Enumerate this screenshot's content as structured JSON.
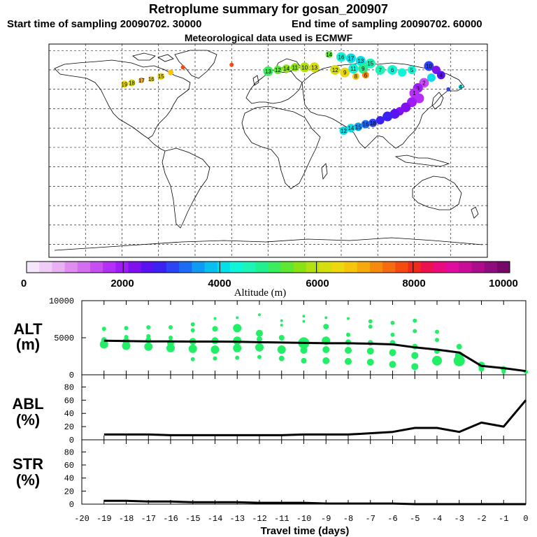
{
  "header": {
    "title": "Retroplume summary for gosan_200907",
    "start": "Start time of sampling 20090702. 30000",
    "end": "End time of sampling 20090702. 60000",
    "met": "Meteorological data used is ECMWF"
  },
  "colorbar": {
    "ticks": [
      "0",
      "2000",
      "4000",
      "6000",
      "8000",
      "10000"
    ],
    "label": "Altitude (m)",
    "colors": [
      "#f6e6fb",
      "#f0cdf7",
      "#e8b1f2",
      "#df8ef0",
      "#d46ef0",
      "#c64ff2",
      "#b430f6",
      "#a01cf8",
      "#8010f0",
      "#5a12f0",
      "#3b22f2",
      "#2c44f4",
      "#1d6cf6",
      "#109af4",
      "#08bff0",
      "#06dfe8",
      "#10f4d8",
      "#1cf4b8",
      "#22f090",
      "#3aec5e",
      "#5ee832",
      "#8ae214",
      "#b2e010",
      "#d6de10",
      "#ecd80c",
      "#f6c40c",
      "#f6a80c",
      "#f68a0c",
      "#f66a10",
      "#f44c10",
      "#f02a1c",
      "#ec1250",
      "#ea0c7c",
      "#e00ca0",
      "#c80c98",
      "#ac0c8c",
      "#900c7c",
      "#76086a"
    ]
  },
  "map_data": {
    "markers": [
      {
        "lon": -118,
        "lat": 49,
        "c": "#ecd80c",
        "r": 5,
        "label": "19"
      },
      {
        "lon": -112,
        "lat": 50,
        "c": "#d6de10",
        "r": 5,
        "label": "18"
      },
      {
        "lon": -104,
        "lat": 52,
        "c": "#f6a80c",
        "r": 4,
        "label": "17"
      },
      {
        "lon": -96,
        "lat": 53,
        "c": "#ecd80c",
        "r": 4,
        "label": "16"
      },
      {
        "lon": -88,
        "lat": 55,
        "c": "#ecd80c",
        "r": 5,
        "label": "15"
      },
      {
        "lon": -80,
        "lat": 58,
        "c": "#f6c40c",
        "r": 4,
        "label": ""
      },
      {
        "lon": -70,
        "lat": 62,
        "c": "#f44c10",
        "r": 3,
        "label": ""
      },
      {
        "lon": -30,
        "lat": 64,
        "c": "#f44c10",
        "r": 3,
        "label": ""
      },
      {
        "lon": 0,
        "lat": 59,
        "c": "#3aec5e",
        "r": 7,
        "label": "13"
      },
      {
        "lon": 8,
        "lat": 60,
        "c": "#5ee832",
        "r": 6,
        "label": "12"
      },
      {
        "lon": 15,
        "lat": 61,
        "c": "#8ae214",
        "r": 6,
        "label": "14"
      },
      {
        "lon": 22,
        "lat": 62,
        "c": "#8ae214",
        "r": 6,
        "label": "11"
      },
      {
        "lon": 30,
        "lat": 62,
        "c": "#b2e010",
        "r": 7,
        "label": "10"
      },
      {
        "lon": 38,
        "lat": 62,
        "c": "#d6de10",
        "r": 7,
        "label": "13"
      },
      {
        "lon": 50,
        "lat": 72,
        "c": "#5ee832",
        "r": 5,
        "label": "14"
      },
      {
        "lon": 60,
        "lat": 70,
        "c": "#10f4d8",
        "r": 7,
        "label": "16"
      },
      {
        "lon": 68,
        "lat": 69,
        "c": "#06dfe8",
        "r": 7,
        "label": "17"
      },
      {
        "lon": 76,
        "lat": 67,
        "c": "#06dfe8",
        "r": 7,
        "label": "13"
      },
      {
        "lon": 84,
        "lat": 65,
        "c": "#1cf4b8",
        "r": 7,
        "label": "15"
      },
      {
        "lon": 55,
        "lat": 60,
        "c": "#d6de10",
        "r": 7,
        "label": "12"
      },
      {
        "lon": 63,
        "lat": 58,
        "c": "#ecd80c",
        "r": 7,
        "label": "9"
      },
      {
        "lon": 70,
        "lat": 61,
        "c": "#10f4d8",
        "r": 7,
        "label": "11"
      },
      {
        "lon": 78,
        "lat": 61,
        "c": "#22f090",
        "r": 7,
        "label": "9"
      },
      {
        "lon": 72,
        "lat": 55,
        "c": "#f6c40c",
        "r": 5,
        "label": "8"
      },
      {
        "lon": 80,
        "lat": 56,
        "c": "#f68a0c",
        "r": 5,
        "label": "6"
      },
      {
        "lon": 92,
        "lat": 60,
        "c": "#1cf4b8",
        "r": 7,
        "label": "7"
      },
      {
        "lon": 102,
        "lat": 60,
        "c": "#10f4d8",
        "r": 7,
        "label": "6"
      },
      {
        "lon": 110,
        "lat": 58,
        "c": "#10f4d8",
        "r": 6,
        "label": ""
      },
      {
        "lon": 118,
        "lat": 60,
        "c": "#10f4d8",
        "r": 6,
        "label": "5"
      },
      {
        "lon": 132,
        "lat": 63,
        "c": "#2c44f4",
        "r": 7,
        "label": "10"
      },
      {
        "lon": 138,
        "lat": 60,
        "c": "#8010f0",
        "r": 6,
        "label": ""
      },
      {
        "lon": 142,
        "lat": 56,
        "c": "#5a12f0",
        "r": 6,
        "label": "4"
      },
      {
        "lon": 134,
        "lat": 54,
        "c": "#06dfe8",
        "r": 6,
        "label": ""
      },
      {
        "lon": 128,
        "lat": 50,
        "c": "#c64ff2",
        "r": 7,
        "label": "2"
      },
      {
        "lon": 123,
        "lat": 46,
        "c": "#a01cf8",
        "r": 7,
        "label": "3"
      },
      {
        "lon": 120,
        "lat": 42,
        "c": "#b430f6",
        "r": 7,
        "label": "1"
      },
      {
        "lon": 124,
        "lat": 38,
        "c": "#b430f6",
        "r": 7,
        "label": ""
      },
      {
        "lon": 118,
        "lat": 35,
        "c": "#a01cf8",
        "r": 7,
        "label": ""
      },
      {
        "lon": 113,
        "lat": 31,
        "c": "#8010f0",
        "r": 7,
        "label": ""
      },
      {
        "lon": 108,
        "lat": 28,
        "c": "#8010f0",
        "r": 6,
        "label": ""
      },
      {
        "lon": 104,
        "lat": 26,
        "c": "#5a12f0",
        "r": 7,
        "label": ""
      },
      {
        "lon": 98,
        "lat": 24,
        "c": "#3b22f2",
        "r": 7,
        "label": ""
      },
      {
        "lon": 92,
        "lat": 21,
        "c": "#3b22f2",
        "r": 6,
        "label": ""
      },
      {
        "lon": 86,
        "lat": 19,
        "c": "#2c44f4",
        "r": 6,
        "label": "18"
      },
      {
        "lon": 80,
        "lat": 18,
        "c": "#1d6cf6",
        "r": 6,
        "label": "16"
      },
      {
        "lon": 74,
        "lat": 16,
        "c": "#109af4",
        "r": 6,
        "label": "15"
      },
      {
        "lon": 68,
        "lat": 15,
        "c": "#06dfe8",
        "r": 6,
        "label": "14"
      },
      {
        "lon": 62,
        "lat": 13,
        "c": "#06dfe8",
        "r": 6,
        "label": "12"
      },
      {
        "lon": 148,
        "lat": 45,
        "c": "#2c44f4",
        "r": 3,
        "label": ""
      },
      {
        "lon": 158,
        "lat": 47,
        "c": "#06dfe8",
        "r": 3,
        "label": "4"
      }
    ]
  },
  "chart_data": [
    {
      "type": "scatter+line",
      "panel": "ALT",
      "ylabel": "ALT\n(m)",
      "ylabel_top": "ALT",
      "ylabel_bottom": "(m)",
      "ylim": [
        0,
        10000
      ],
      "yticks": [
        "0",
        "5000",
        "10000"
      ],
      "xlim": [
        -20,
        0
      ],
      "line": {
        "x": [
          -19,
          -18,
          -17,
          -16,
          -15,
          -14,
          -13,
          -12,
          -11,
          -10,
          -9,
          -8,
          -7,
          -6,
          -5,
          -4,
          -3,
          -2,
          -1,
          0
        ],
        "y": [
          4600,
          4550,
          4500,
          4500,
          4480,
          4480,
          4450,
          4400,
          4350,
          4300,
          4250,
          4250,
          4200,
          4100,
          3700,
          3400,
          3000,
          1200,
          900,
          500
        ]
      },
      "points": [
        {
          "x": -19,
          "y": 6200,
          "s": 3
        },
        {
          "x": -19,
          "y": 4700,
          "s": 4
        },
        {
          "x": -19,
          "y": 4100,
          "s": 6
        },
        {
          "x": -18,
          "y": 6300,
          "s": 3
        },
        {
          "x": -18,
          "y": 5100,
          "s": 3
        },
        {
          "x": -18,
          "y": 4500,
          "s": 5
        },
        {
          "x": -18,
          "y": 3900,
          "s": 6
        },
        {
          "x": -17,
          "y": 6400,
          "s": 3
        },
        {
          "x": -17,
          "y": 5200,
          "s": 3
        },
        {
          "x": -17,
          "y": 4700,
          "s": 4
        },
        {
          "x": -17,
          "y": 3800,
          "s": 6
        },
        {
          "x": -16,
          "y": 6400,
          "s": 3
        },
        {
          "x": -16,
          "y": 5000,
          "s": 3
        },
        {
          "x": -16,
          "y": 4300,
          "s": 5
        },
        {
          "x": -16,
          "y": 3600,
          "s": 6
        },
        {
          "x": -15,
          "y": 6800,
          "s": 3
        },
        {
          "x": -15,
          "y": 6000,
          "s": 3
        },
        {
          "x": -15,
          "y": 4500,
          "s": 5
        },
        {
          "x": -15,
          "y": 3500,
          "s": 6
        },
        {
          "x": -15,
          "y": 2100,
          "s": 3
        },
        {
          "x": -14,
          "y": 7600,
          "s": 2
        },
        {
          "x": -14,
          "y": 6200,
          "s": 4
        },
        {
          "x": -14,
          "y": 4600,
          "s": 5
        },
        {
          "x": -14,
          "y": 3400,
          "s": 6
        },
        {
          "x": -14,
          "y": 2200,
          "s": 3
        },
        {
          "x": -13,
          "y": 7700,
          "s": 2
        },
        {
          "x": -13,
          "y": 6300,
          "s": 6
        },
        {
          "x": -13,
          "y": 4600,
          "s": 6
        },
        {
          "x": -13,
          "y": 3600,
          "s": 6
        },
        {
          "x": -13,
          "y": 2300,
          "s": 3
        },
        {
          "x": -12,
          "y": 8100,
          "s": 2
        },
        {
          "x": -12,
          "y": 5600,
          "s": 5
        },
        {
          "x": -12,
          "y": 4800,
          "s": 4
        },
        {
          "x": -12,
          "y": 3700,
          "s": 6
        },
        {
          "x": -12,
          "y": 2400,
          "s": 3
        },
        {
          "x": -11,
          "y": 7300,
          "s": 2
        },
        {
          "x": -11,
          "y": 6700,
          "s": 2
        },
        {
          "x": -11,
          "y": 5000,
          "s": 4
        },
        {
          "x": -11,
          "y": 3400,
          "s": 6
        },
        {
          "x": -11,
          "y": 2200,
          "s": 4
        },
        {
          "x": -10,
          "y": 7900,
          "s": 2
        },
        {
          "x": -10,
          "y": 7200,
          "s": 2
        },
        {
          "x": -10,
          "y": 4300,
          "s": 8
        },
        {
          "x": -10,
          "y": 3300,
          "s": 5
        },
        {
          "x": -10,
          "y": 1900,
          "s": 4
        },
        {
          "x": -9,
          "y": 7700,
          "s": 2
        },
        {
          "x": -9,
          "y": 6500,
          "s": 4
        },
        {
          "x": -9,
          "y": 4600,
          "s": 6
        },
        {
          "x": -9,
          "y": 3400,
          "s": 5
        },
        {
          "x": -9,
          "y": 1900,
          "s": 5
        },
        {
          "x": -8,
          "y": 7600,
          "s": 2
        },
        {
          "x": -8,
          "y": 5400,
          "s": 3
        },
        {
          "x": -8,
          "y": 4400,
          "s": 4
        },
        {
          "x": -8,
          "y": 3300,
          "s": 5
        },
        {
          "x": -8,
          "y": 1800,
          "s": 5
        },
        {
          "x": -7,
          "y": 7200,
          "s": 3
        },
        {
          "x": -7,
          "y": 6500,
          "s": 3
        },
        {
          "x": -7,
          "y": 4300,
          "s": 4
        },
        {
          "x": -7,
          "y": 3200,
          "s": 5
        },
        {
          "x": -7,
          "y": 1700,
          "s": 5
        },
        {
          "x": -6,
          "y": 7000,
          "s": 3
        },
        {
          "x": -6,
          "y": 5400,
          "s": 3
        },
        {
          "x": -6,
          "y": 4300,
          "s": 4
        },
        {
          "x": -6,
          "y": 3000,
          "s": 5
        },
        {
          "x": -6,
          "y": 1400,
          "s": 5
        },
        {
          "x": -5,
          "y": 7300,
          "s": 3
        },
        {
          "x": -5,
          "y": 5900,
          "s": 3
        },
        {
          "x": -5,
          "y": 3800,
          "s": 4
        },
        {
          "x": -5,
          "y": 2600,
          "s": 5
        },
        {
          "x": -5,
          "y": 1100,
          "s": 5
        },
        {
          "x": -4,
          "y": 5800,
          "s": 3
        },
        {
          "x": -4,
          "y": 4700,
          "s": 3
        },
        {
          "x": -4,
          "y": 3200,
          "s": 4
        },
        {
          "x": -4,
          "y": 1900,
          "s": 7
        },
        {
          "x": -3,
          "y": 3800,
          "s": 4
        },
        {
          "x": -3,
          "y": 2600,
          "s": 6
        },
        {
          "x": -3,
          "y": 1900,
          "s": 8
        },
        {
          "x": -2,
          "y": 1300,
          "s": 5
        },
        {
          "x": -2,
          "y": 800,
          "s": 4
        },
        {
          "x": -1,
          "y": 800,
          "s": 4
        },
        {
          "x": -1,
          "y": 400,
          "s": 3
        },
        {
          "x": 0,
          "y": 400,
          "s": 3
        }
      ]
    },
    {
      "type": "line",
      "panel": "ABL",
      "ylabel_top": "ABL",
      "ylabel_bottom": "(%)",
      "ylim": [
        0,
        90
      ],
      "yticks": [
        "0",
        "20",
        "40",
        "60",
        "80"
      ],
      "xlim": [
        -20,
        0
      ],
      "x": [
        -19,
        -18,
        -17,
        -16,
        -15,
        -14,
        -13,
        -12,
        -11,
        -10,
        -9,
        -8,
        -7,
        -6,
        -5,
        -4,
        -3,
        -2,
        -1,
        0
      ],
      "y": [
        8,
        8,
        8,
        7,
        7,
        7,
        7,
        7,
        7,
        8,
        8,
        8,
        10,
        12,
        18,
        18,
        12,
        26,
        20,
        60
      ]
    },
    {
      "type": "line",
      "panel": "STR",
      "ylabel_top": "STR",
      "ylabel_bottom": "(%)",
      "ylim": [
        0,
        90
      ],
      "yticks": [
        "0",
        "20",
        "40",
        "60",
        "80"
      ],
      "xlim": [
        -20,
        0
      ],
      "xlabel": "Travel time (days)",
      "xticks": [
        "-20",
        "-19",
        "-18",
        "-17",
        "-16",
        "-15",
        "-14",
        "-13",
        "-12",
        "-11",
        "-10",
        "-9",
        "-8",
        "-7",
        "-6",
        "-5",
        "-4",
        "-3",
        "-2",
        "-1",
        "0"
      ],
      "x": [
        -19,
        -18,
        -17,
        -16,
        -15,
        -14,
        -13,
        -12,
        -11,
        -10,
        -9,
        -8,
        -7,
        -6,
        -5,
        -4,
        -3,
        -2,
        -1,
        0
      ],
      "y": [
        5,
        5,
        4,
        4,
        3,
        3,
        3,
        2,
        2,
        2,
        1,
        1,
        1,
        1,
        0,
        0,
        0,
        0,
        0,
        0
      ]
    }
  ]
}
